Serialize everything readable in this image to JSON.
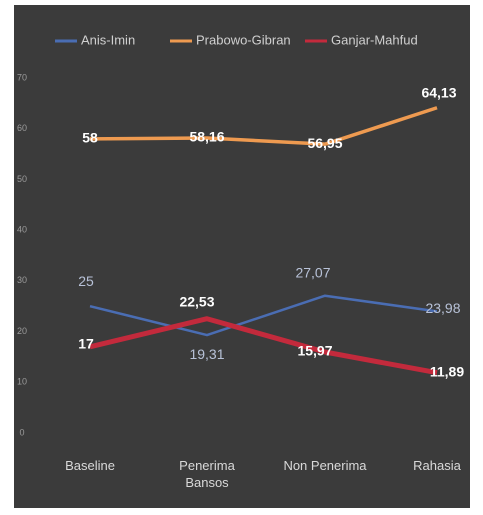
{
  "chart_data": {
    "type": "line",
    "categories": [
      "Baseline",
      "Penerima Bansos",
      "Non Penerima",
      "Rahasia"
    ],
    "series": [
      {
        "name": "Anis-Imin",
        "color": "#4a6db3",
        "values": [
          25,
          19.31,
          27.07,
          23.98
        ],
        "value_labels": [
          "25",
          "19,31",
          "27,07",
          "23,98"
        ]
      },
      {
        "name": "Prabowo-Gibran",
        "color": "#ee9a50",
        "values": [
          58,
          58.16,
          56.95,
          64.13
        ],
        "value_labels": [
          "58",
          "58,16",
          "56,95",
          "64,13"
        ]
      },
      {
        "name": "Ganjar-Mahfud",
        "color": "#c32a3c",
        "values": [
          17,
          22.53,
          15.97,
          11.89
        ],
        "value_labels": [
          "17",
          "22,53",
          "15,97",
          "11,89"
        ]
      }
    ],
    "ylim": [
      0,
      70
    ],
    "yticks": [
      0,
      10,
      20,
      30,
      40,
      50,
      60,
      70
    ],
    "grid": false,
    "legend": "top"
  }
}
